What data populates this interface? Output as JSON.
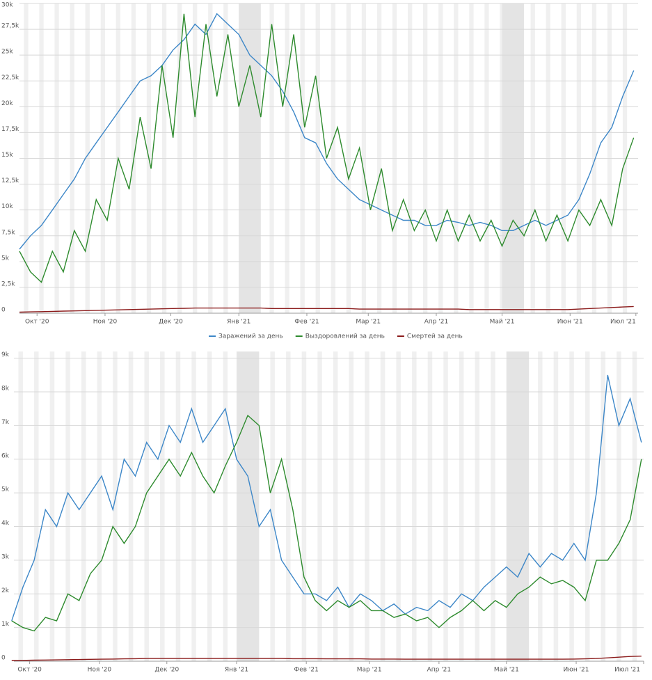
{
  "chart_data": [
    {
      "type": "line",
      "x": [
        -8,
        -3,
        2,
        7,
        12,
        17,
        22,
        27,
        32,
        37,
        42,
        47,
        52,
        57,
        62,
        67,
        72,
        77,
        82,
        87,
        92,
        97,
        102,
        107,
        112,
        117,
        122,
        127,
        132,
        137,
        142,
        147,
        152,
        157,
        162,
        167,
        172,
        177,
        182,
        187,
        192,
        197,
        202,
        207,
        212,
        217,
        222,
        227,
        232,
        237,
        242,
        247,
        252,
        257,
        262,
        267,
        272
      ],
      "series": [
        {
          "name": "Заражений за день",
          "color": "#3d87c8",
          "values": [
            6200,
            7500,
            8500,
            10000,
            11500,
            13000,
            15000,
            16500,
            18000,
            19500,
            21000,
            22500,
            23000,
            24000,
            25500,
            26500,
            28000,
            27000,
            29000,
            28000,
            27000,
            25000,
            24000,
            23000,
            21500,
            19500,
            17000,
            16500,
            14500,
            13000,
            12000,
            11000,
            10500,
            10000,
            9500,
            9000,
            9000,
            8500,
            8500,
            9000,
            8800,
            8500,
            8800,
            8500,
            8000,
            8000,
            8500,
            9000,
            8500,
            9000,
            9500,
            11000,
            13500,
            16500,
            18000,
            21000,
            23500
          ]
        },
        {
          "name": "Выздоровлений за день",
          "color": "#2e8b2e",
          "values": [
            6000,
            4000,
            3000,
            6000,
            4000,
            8000,
            6000,
            11000,
            9000,
            15000,
            12000,
            19000,
            14000,
            24000,
            17000,
            29000,
            19000,
            28000,
            21000,
            27000,
            20000,
            24000,
            19000,
            28000,
            20000,
            27000,
            18000,
            23000,
            15000,
            18000,
            13000,
            16000,
            10000,
            14000,
            8000,
            11000,
            8000,
            10000,
            7000,
            10000,
            7000,
            9500,
            7000,
            9000,
            6500,
            9000,
            7500,
            10000,
            7000,
            9500,
            7000,
            10000,
            8500,
            11000,
            8500,
            14000,
            17000
          ]
        },
        {
          "name": "Смертей за день",
          "color": "#8b1a1a",
          "values": [
            100,
            125,
            150,
            175,
            200,
            225,
            250,
            275,
            300,
            325,
            350,
            375,
            400,
            425,
            450,
            475,
            500,
            500,
            500,
            500,
            500,
            500,
            500,
            450,
            450,
            450,
            450,
            450,
            450,
            450,
            450,
            400,
            400,
            400,
            400,
            400,
            400,
            400,
            400,
            400,
            400,
            350,
            350,
            350,
            350,
            350,
            350,
            350,
            350,
            350,
            350,
            400,
            450,
            500,
            550,
            600,
            650
          ]
        }
      ],
      "xlim": [
        -8,
        274
      ],
      "xticks": [
        {
          "value": 0,
          "label": "Окт '20"
        },
        {
          "value": 31,
          "label": "Ноя '20"
        },
        {
          "value": 61,
          "label": "Дек '20"
        },
        {
          "value": 92,
          "label": "Янв '21"
        },
        {
          "value": 123,
          "label": "Фев '21"
        },
        {
          "value": 151,
          "label": "Мар '21"
        },
        {
          "value": 182,
          "label": "Апр '21"
        },
        {
          "value": 212,
          "label": "Май '21"
        },
        {
          "value": 243,
          "label": "Июн '21"
        },
        {
          "value": 273,
          "label": "Июл '21"
        }
      ],
      "ylim": [
        0,
        30000
      ],
      "yticks": [
        0,
        {
          "value": 2500,
          "label": "2,5k"
        },
        {
          "value": 5000,
          "label": "5k"
        },
        {
          "value": 7500,
          "label": "7,5k"
        },
        {
          "value": 10000,
          "label": "10k"
        },
        {
          "value": 12500,
          "label": "12,5k"
        },
        {
          "value": 15000,
          "label": "15k"
        },
        {
          "value": 17500,
          "label": "17,5k"
        },
        {
          "value": 20000,
          "label": "20k"
        },
        {
          "value": 22500,
          "label": "22,5k"
        },
        {
          "value": 25000,
          "label": "25k"
        },
        {
          "value": 27500,
          "label": "27,5k"
        },
        {
          "value": 30000,
          "label": "30k"
        }
      ],
      "grid": true,
      "legend": "bottom"
    },
    {
      "type": "line",
      "x": [
        -8,
        -3,
        2,
        7,
        12,
        17,
        22,
        27,
        32,
        37,
        42,
        47,
        52,
        57,
        62,
        67,
        72,
        77,
        82,
        87,
        92,
        97,
        102,
        107,
        112,
        117,
        122,
        127,
        132,
        137,
        142,
        147,
        152,
        157,
        162,
        167,
        172,
        177,
        182,
        187,
        192,
        197,
        202,
        207,
        212,
        217,
        222,
        227,
        232,
        237,
        242,
        247,
        252,
        257,
        262,
        267,
        272
      ],
      "series": [
        {
          "color": "#3d87c8",
          "values": [
            1200,
            2200,
            3000,
            4500,
            4000,
            5000,
            4500,
            5000,
            5500,
            4500,
            6000,
            5500,
            6500,
            6000,
            7000,
            6500,
            7500,
            6500,
            7000,
            7500,
            6000,
            5500,
            4000,
            4500,
            3000,
            2500,
            2000,
            2000,
            1800,
            2200,
            1600,
            2000,
            1800,
            1500,
            1700,
            1400,
            1600,
            1500,
            1800,
            1600,
            2000,
            1800,
            2200,
            2500,
            2800,
            2500,
            3200,
            2800,
            3200,
            3000,
            3500,
            3000,
            5000,
            8500,
            7000,
            7800,
            6500
          ]
        },
        {
          "color": "#2e8b2e",
          "values": [
            1200,
            1000,
            900,
            1300,
            1200,
            2000,
            1800,
            2600,
            3000,
            4000,
            3500,
            4000,
            5000,
            5500,
            6000,
            5500,
            6200,
            5500,
            5000,
            5800,
            6500,
            7300,
            7000,
            5000,
            6000,
            4500,
            2500,
            1800,
            1500,
            1800,
            1600,
            1800,
            1500,
            1500,
            1300,
            1400,
            1200,
            1300,
            1000,
            1300,
            1500,
            1800,
            1500,
            1800,
            1600,
            2000,
            2200,
            2500,
            2300,
            2400,
            2200,
            1800,
            3000,
            3000,
            3500,
            4200,
            6000
          ]
        },
        {
          "color": "#8b1a1a",
          "values": [
            20,
            25,
            30,
            35,
            40,
            45,
            50,
            55,
            60,
            65,
            70,
            75,
            80,
            80,
            80,
            80,
            80,
            80,
            80,
            80,
            80,
            80,
            80,
            80,
            80,
            75,
            75,
            75,
            70,
            70,
            70,
            70,
            65,
            65,
            65,
            60,
            60,
            60,
            60,
            60,
            60,
            60,
            60,
            60,
            60,
            60,
            60,
            60,
            60,
            60,
            65,
            70,
            80,
            100,
            120,
            140,
            150
          ]
        }
      ],
      "xlim": [
        -7,
        273
      ],
      "xticks": [
        {
          "value": 0,
          "label": "Окт '20"
        },
        {
          "value": 31,
          "label": "Ноя '20"
        },
        {
          "value": 61,
          "label": "Дек '20"
        },
        {
          "value": 92,
          "label": "Янв '21"
        },
        {
          "value": 123,
          "label": "Фев '21"
        },
        {
          "value": 151,
          "label": "Мар '21"
        },
        {
          "value": 182,
          "label": "Апр '21"
        },
        {
          "value": 212,
          "label": "Май '21"
        },
        {
          "value": 243,
          "label": "Июн '21"
        },
        {
          "value": 273,
          "label": "Июл '21"
        }
      ],
      "ylim": [
        0,
        9200
      ],
      "yticks": [
        0,
        {
          "value": 1000,
          "label": "1k"
        },
        {
          "value": 2000,
          "label": "2k"
        },
        {
          "value": 3000,
          "label": "3k"
        },
        {
          "value": 4000,
          "label": "4k"
        },
        {
          "value": 5000,
          "label": "5k"
        },
        {
          "value": 6000,
          "label": "6k"
        },
        {
          "value": 7000,
          "label": "7k"
        },
        {
          "value": 8000,
          "label": "8k"
        },
        {
          "value": 9000,
          "label": "9k"
        }
      ],
      "grid": true
    }
  ]
}
